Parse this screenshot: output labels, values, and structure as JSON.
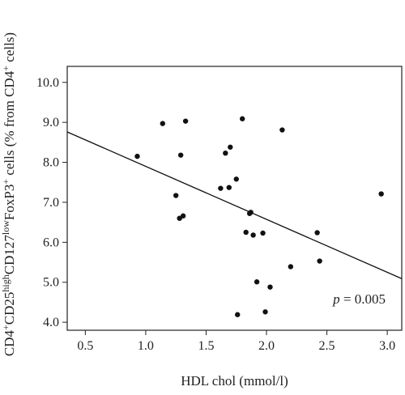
{
  "chart_data": {
    "type": "scatter",
    "xlabel": "HDL chol (mmol/l)",
    "ylabel_parts": [
      {
        "text": "CD4",
        "sup": false
      },
      {
        "text": "+",
        "sup": true
      },
      {
        "text": "CD25",
        "sup": false
      },
      {
        "text": "high",
        "sup": true
      },
      {
        "text": "CD127",
        "sup": false
      },
      {
        "text": "low",
        "sup": true
      },
      {
        "text": "FoxP3",
        "sup": false
      },
      {
        "text": "+",
        "sup": true
      },
      {
        "text": " cells (% from CD4",
        "sup": false
      },
      {
        "text": "+",
        "sup": true
      },
      {
        "text": " cells)",
        "sup": false
      }
    ],
    "xlim": [
      0.35,
      3.12
    ],
    "ylim": [
      3.8,
      10.4
    ],
    "xticks": [
      "0.5",
      "1.0",
      "1.5",
      "2.0",
      "2.5",
      "3.0"
    ],
    "yticks": [
      "4.0",
      "5.0",
      "6.0",
      "7.0",
      "8.0",
      "9.0",
      "10.0"
    ],
    "grid": false,
    "annotation": {
      "italic": "p",
      "text": " = 0.005"
    },
    "points": [
      {
        "x": 0.93,
        "y": 8.15
      },
      {
        "x": 1.14,
        "y": 8.97
      },
      {
        "x": 1.25,
        "y": 7.17
      },
      {
        "x": 1.28,
        "y": 6.6
      },
      {
        "x": 1.29,
        "y": 8.18
      },
      {
        "x": 1.31,
        "y": 6.66
      },
      {
        "x": 1.33,
        "y": 9.03
      },
      {
        "x": 1.62,
        "y": 7.35
      },
      {
        "x": 1.66,
        "y": 8.23
      },
      {
        "x": 1.69,
        "y": 7.37
      },
      {
        "x": 1.7,
        "y": 8.38
      },
      {
        "x": 1.75,
        "y": 7.58
      },
      {
        "x": 1.76,
        "y": 4.19
      },
      {
        "x": 1.8,
        "y": 9.09
      },
      {
        "x": 1.83,
        "y": 6.25
      },
      {
        "x": 1.86,
        "y": 6.72
      },
      {
        "x": 1.87,
        "y": 6.75
      },
      {
        "x": 1.89,
        "y": 6.18
      },
      {
        "x": 1.92,
        "y": 5.01
      },
      {
        "x": 1.97,
        "y": 6.23
      },
      {
        "x": 1.99,
        "y": 4.26
      },
      {
        "x": 2.03,
        "y": 4.88
      },
      {
        "x": 2.13,
        "y": 8.81
      },
      {
        "x": 2.2,
        "y": 5.39
      },
      {
        "x": 2.42,
        "y": 6.24
      },
      {
        "x": 2.44,
        "y": 5.53
      },
      {
        "x": 2.95,
        "y": 7.21
      }
    ],
    "regression_line": {
      "x": [
        0.35,
        3.12
      ],
      "y": [
        8.76,
        5.09
      ]
    }
  }
}
